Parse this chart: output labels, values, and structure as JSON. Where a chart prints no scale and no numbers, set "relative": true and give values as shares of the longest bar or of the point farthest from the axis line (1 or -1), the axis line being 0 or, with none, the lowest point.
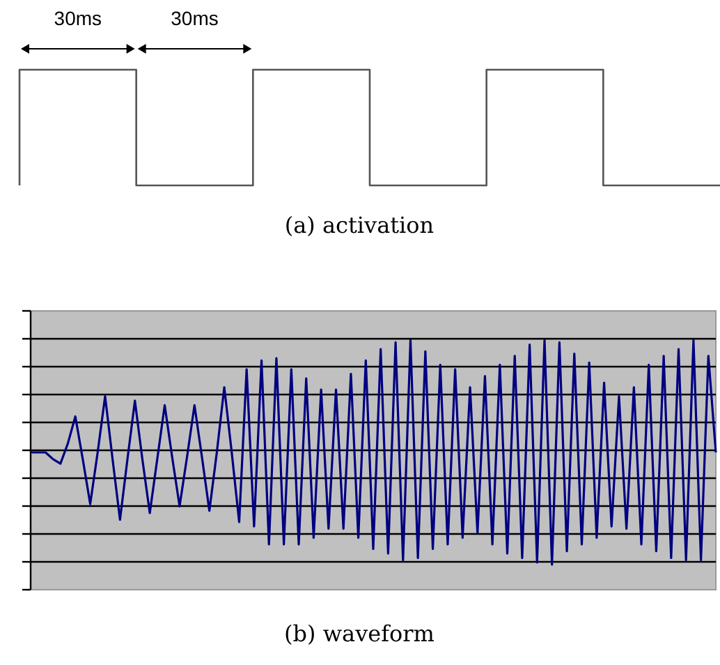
{
  "chart_data": [
    {
      "type": "step",
      "title": "(a) activation",
      "relative": true,
      "categories": [
        null,
        null,
        null,
        null,
        null,
        null,
        null
      ],
      "annotations": [
        "30ms",
        "30ms"
      ],
      "series": [
        {
          "color": "#555555",
          "values": [
            0,
            1,
            0,
            1,
            0,
            1,
            0
          ]
        }
      ]
    },
    {
      "type": "line",
      "title": "(b) waveform",
      "relative": true,
      "grid": true,
      "categories": [
        null,
        null,
        null,
        null,
        null,
        null,
        null,
        null,
        null,
        null,
        null,
        null,
        null,
        null,
        null,
        null,
        null,
        null,
        null,
        null,
        null,
        null,
        null,
        null,
        null,
        null,
        null,
        null,
        null,
        null,
        null,
        null,
        null,
        null,
        null,
        null,
        null,
        null,
        null,
        null,
        null,
        null,
        null,
        null,
        null,
        null,
        null,
        null,
        null,
        null,
        null,
        null,
        null,
        null,
        null,
        null,
        null,
        null,
        null,
        null,
        null,
        null,
        null,
        null,
        null,
        null,
        null,
        null,
        null,
        null,
        null,
        null,
        null,
        null,
        null,
        null,
        null,
        null,
        null,
        null,
        null,
        null,
        null,
        null,
        null,
        null,
        null,
        null,
        null,
        null,
        null,
        null,
        null
      ],
      "series": [
        {
          "color": "#000080",
          "values": [
            0.5,
            0.5,
            0.5,
            0.47,
            0.45,
            0.54,
            0.66,
            0.47,
            0.27,
            0.5,
            0.75,
            0.47,
            0.2,
            0.47,
            0.73,
            0.47,
            0.23,
            0.47,
            0.71,
            0.48,
            0.26,
            0.48,
            0.71,
            0.48,
            0.24,
            0.5,
            0.79,
            0.5,
            0.19,
            0.87,
            0.17,
            0.91,
            0.09,
            0.92,
            0.09,
            0.87,
            0.09,
            0.83,
            0.12,
            0.78,
            0.16,
            0.78,
            0.16,
            0.85,
            0.12,
            0.91,
            0.07,
            0.96,
            0.05,
            0.99,
            0.02,
            1,
            0.03,
            0.95,
            0.07,
            0.89,
            0.09,
            0.87,
            0.12,
            0.79,
            0.14,
            0.84,
            0.09,
            0.89,
            0.05,
            0.93,
            0.03,
            0.98,
            0.01,
            1,
            0,
            0.99,
            0.06,
            0.94,
            0.09,
            0.9,
            0.12,
            0.81,
            0.17,
            0.75,
            0.16,
            0.79,
            0.09,
            0.89,
            0.06,
            0.93,
            0.03,
            0.96,
            0.02,
            1,
            0.02,
            0.93,
            0.5
          ]
        }
      ]
    }
  ]
}
